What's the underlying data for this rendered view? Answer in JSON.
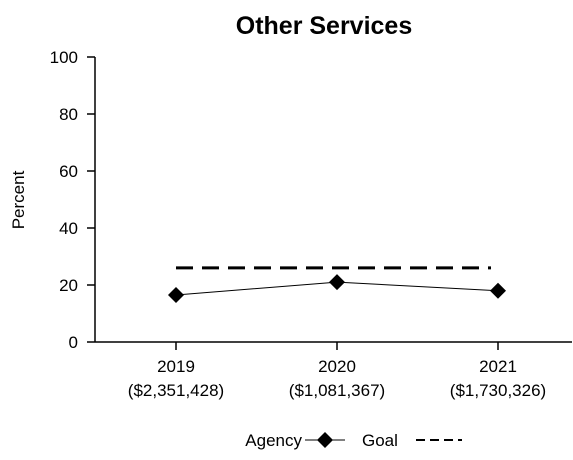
{
  "chart_data": {
    "type": "line",
    "title": "Other Services",
    "ylabel": "Percent",
    "xlabel": "",
    "ylim": [
      0,
      100
    ],
    "yticks": [
      0,
      20,
      40,
      60,
      80,
      100
    ],
    "categories": [
      {
        "year": "2019",
        "amount": "($2,351,428)"
      },
      {
        "year": "2020",
        "amount": "($1,081,367)"
      },
      {
        "year": "2021",
        "amount": "($1,730,326)"
      }
    ],
    "series": [
      {
        "name": "Agency",
        "values": [
          16.5,
          21,
          18
        ],
        "marker": "diamond",
        "style": "solid"
      },
      {
        "name": "Goal",
        "values": [
          26,
          26,
          26
        ],
        "marker": "none",
        "style": "dashed"
      }
    ],
    "legend": {
      "placement": "bottom-center",
      "agency_label": "Agency",
      "goal_label": "Goal"
    },
    "grid": false
  }
}
